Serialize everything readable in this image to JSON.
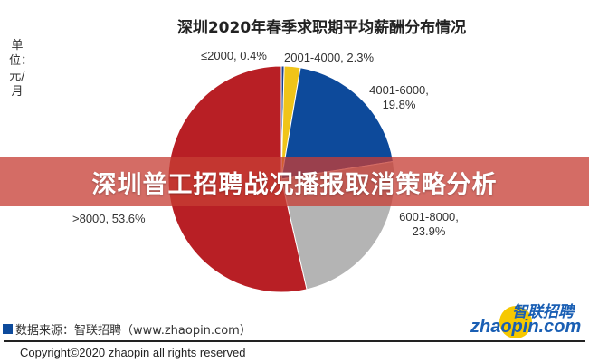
{
  "chart_data": {
    "type": "pie",
    "title": "深圳2020年春季求职期平均薪酬分布情况",
    "unit_label": "单位：元/月",
    "categories": [
      "≤2000",
      "2001-4000",
      "4001-6000",
      "6001-8000",
      ">8000"
    ],
    "values": [
      0.4,
      2.3,
      19.8,
      23.9,
      53.6
    ],
    "value_unit": "%",
    "colors": [
      "#1b3f8f",
      "#f0c419",
      "#0d4a9b",
      "#b4b4b4",
      "#b81f25"
    ],
    "data_labels": [
      "≤2000, 0.4%",
      "2001-4000, 2.3%",
      "4001-6000, 19.8%",
      "6001-8000, 23.9%",
      ">8000, 53.6%"
    ],
    "start_angle": "top",
    "direction": "clockwise"
  },
  "banner": {
    "text": "深圳普工招聘战况播报取消策略分析"
  },
  "source": {
    "text": "数据来源：智联招聘（www.zhaopin.com）"
  },
  "copyright": {
    "text": "Copyright©2020 zhaopin all rights reserved"
  },
  "logo": {
    "cn": "智联招聘",
    "en": "zhaopin.com"
  }
}
